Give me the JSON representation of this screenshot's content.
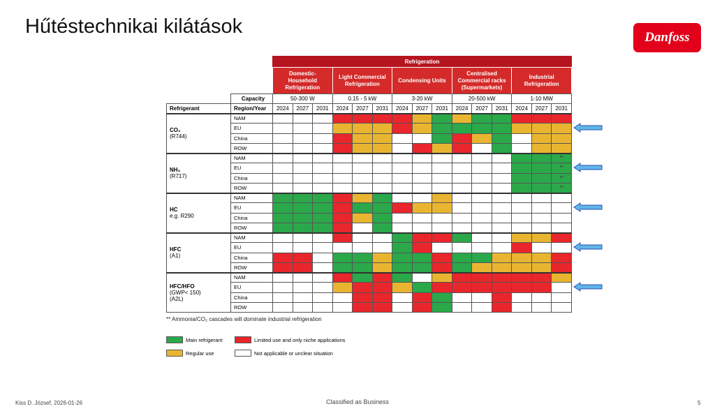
{
  "header": {
    "title": "Hűtéstechnikai kilátások",
    "logo": "Danfoss"
  },
  "table": {
    "super_header": "Refrigeration",
    "capacity_label": "Capacity",
    "refrigerant_label": "Refrigerant",
    "region_year_label": "Region/Year",
    "groups": [
      {
        "name": "Domestic-Household Refrigeration",
        "capacity": "50-300 W"
      },
      {
        "name": "Light Commercial Refrigeration",
        "capacity": "0.15 - 5 kW"
      },
      {
        "name": "Condensing Units",
        "capacity": "3-20 kW"
      },
      {
        "name": "Centralised Commercial racks (Supermarkets)",
        "capacity": "20-500 kW"
      },
      {
        "name": "Industrial Refrigeration",
        "capacity": "1-10 MW"
      }
    ],
    "years": [
      "2024",
      "2027",
      "2031"
    ],
    "refrigerants": [
      {
        "name": "CO₂",
        "detail": [
          "(R744)"
        ],
        "rows": [
          {
            "region": "NAM",
            "cells": [
              "W",
              "W",
              "W",
              "R",
              "R",
              "R",
              "R",
              "Y",
              "G",
              "Y",
              "G",
              "G",
              "R",
              "R",
              "R"
            ]
          },
          {
            "region": "EU",
            "cells": [
              "W",
              "W",
              "W",
              "Y",
              "Y",
              "Y",
              "R",
              "Y",
              "G",
              "G",
              "G",
              "G",
              "Y",
              "Y",
              "Y"
            ]
          },
          {
            "region": "China",
            "cells": [
              "W",
              "W",
              "W",
              "R",
              "Y",
              "Y",
              "W",
              "W",
              "G",
              "R",
              "Y",
              "G",
              "W",
              "Y",
              "Y"
            ]
          },
          {
            "region": "ROW",
            "cells": [
              "W",
              "W",
              "W",
              "R",
              "Y",
              "Y",
              "W",
              "R",
              "Y",
              "R",
              "W",
              "G",
              "W",
              "Y",
              "Y"
            ]
          }
        ]
      },
      {
        "name": "NH₃",
        "detail": [
          "(R717)"
        ],
        "rows": [
          {
            "region": "NAM",
            "cells": [
              "W",
              "W",
              "W",
              "W",
              "W",
              "W",
              "W",
              "W",
              "W",
              "W",
              "W",
              "W",
              "G",
              "G",
              {
                "status": "G",
                "text": "**"
              }
            ]
          },
          {
            "region": "EU",
            "cells": [
              "W",
              "W",
              "W",
              "W",
              "W",
              "W",
              "W",
              "W",
              "W",
              "W",
              "W",
              "W",
              "G",
              "G",
              {
                "status": "G",
                "text": "**"
              }
            ]
          },
          {
            "region": "China",
            "cells": [
              "W",
              "W",
              "W",
              "W",
              "W",
              "W",
              "W",
              "W",
              "W",
              "W",
              "W",
              "W",
              "G",
              "G",
              {
                "status": "G",
                "text": "**"
              }
            ]
          },
          {
            "region": "ROW",
            "cells": [
              "W",
              "W",
              "W",
              "W",
              "W",
              "W",
              "W",
              "W",
              "W",
              "W",
              "W",
              "W",
              "G",
              "G",
              {
                "status": "G",
                "text": "**"
              }
            ]
          }
        ]
      },
      {
        "name": "HC",
        "detail": [
          "e.g. R290"
        ],
        "rows": [
          {
            "region": "NAM",
            "cells": [
              "G",
              "G",
              "G",
              "R",
              "Y",
              "G",
              "W",
              "W",
              "Y",
              "W",
              "W",
              "W",
              "W",
              "W",
              "W"
            ]
          },
          {
            "region": "EU",
            "cells": [
              "G",
              "G",
              "G",
              "R",
              "G",
              "G",
              "R",
              "Y",
              "Y",
              "W",
              "W",
              "W",
              "W",
              "W",
              "W"
            ]
          },
          {
            "region": "China",
            "cells": [
              "G",
              "G",
              "G",
              "R",
              "Y",
              "G",
              "W",
              "W",
              "W",
              "W",
              "W",
              "W",
              "W",
              "W",
              "W"
            ]
          },
          {
            "region": "ROW",
            "cells": [
              "G",
              "G",
              "G",
              "R",
              "W",
              "G",
              "W",
              "W",
              "W",
              "W",
              "W",
              "W",
              "W",
              "W",
              "W"
            ]
          }
        ]
      },
      {
        "name": "HFC",
        "detail": [
          "(A1)"
        ],
        "rows": [
          {
            "region": "NAM",
            "cells": [
              "W",
              "W",
              "W",
              "R",
              "W",
              "W",
              "G",
              "R",
              "R",
              "G",
              "W",
              "W",
              "Y",
              "Y",
              "R"
            ]
          },
          {
            "region": "EU",
            "cells": [
              "W",
              "W",
              "W",
              "W",
              "W",
              "W",
              "G",
              "R",
              "W",
              "W",
              "W",
              "W",
              "R",
              "W",
              "W"
            ]
          },
          {
            "region": "China",
            "cells": [
              "R",
              "R",
              "W",
              "G",
              "G",
              "Y",
              "G",
              "G",
              "R",
              "G",
              "G",
              "Y",
              "Y",
              "Y",
              "R"
            ]
          },
          {
            "region": "ROW",
            "cells": [
              "R",
              "R",
              "W",
              "G",
              "G",
              "Y",
              "G",
              "G",
              "R",
              "G",
              "Y",
              "Y",
              "Y",
              "Y",
              "R"
            ]
          }
        ]
      },
      {
        "name": "HFC/HFO",
        "detail": [
          "(GWP< 150)",
          "(A2L)"
        ],
        "rows": [
          {
            "region": "NAM",
            "cells": [
              "W",
              "W",
              "W",
              "R",
              "G",
              "R",
              "G",
              "W",
              "Y",
              "R",
              "R",
              "R",
              "R",
              "R",
              "Y"
            ]
          },
          {
            "region": "EU",
            "cells": [
              "W",
              "W",
              "W",
              "Y",
              "R",
              "R",
              "Y",
              "G",
              "R",
              "R",
              "R",
              "R",
              "R",
              "R",
              "W"
            ]
          },
          {
            "region": "China",
            "cells": [
              "W",
              "W",
              "W",
              "W",
              "R",
              "R",
              "W",
              "R",
              "G",
              "W",
              "W",
              "R",
              "W",
              "W",
              "W"
            ]
          },
          {
            "region": "ROW",
            "cells": [
              "W",
              "W",
              "W",
              "W",
              "R",
              "R",
              "W",
              "R",
              "G",
              "W",
              "W",
              "R",
              "W",
              "W",
              "W"
            ]
          }
        ]
      }
    ]
  },
  "footnote": "** Ammonia/CO₂ cascades will dominate industrial refrigeration",
  "legend": [
    {
      "code": "G",
      "color": "#2aa84a",
      "label": "Main refrigerant"
    },
    {
      "code": "R",
      "color": "#e8262b",
      "label": "Limited use and only niche applications"
    },
    {
      "code": "Y",
      "color": "#e9b531",
      "label": "Regular use"
    },
    {
      "code": "W",
      "color": "#ffffff",
      "label": "Not applicable or unclear situation"
    }
  ],
  "footer": {
    "author": "Kiss D. József, 2026-01-26",
    "classification": "Classified as Business",
    "page": "5"
  }
}
